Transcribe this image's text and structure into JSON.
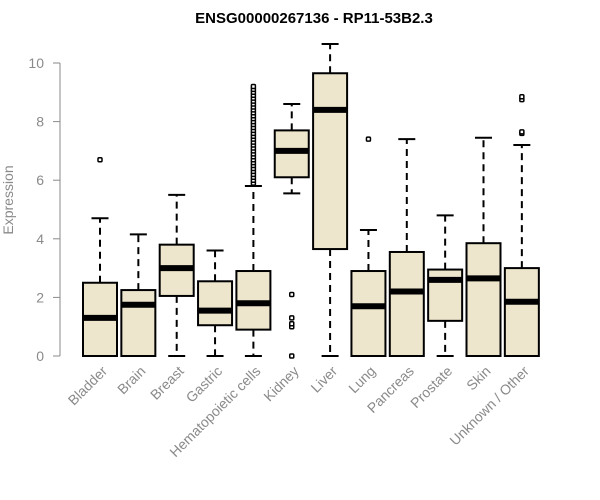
{
  "colors": {
    "box_fill": "#ede6cc",
    "stroke": "#000000",
    "axis_text": "#8a8a8a",
    "axis_line": "#8a8a8a"
  },
  "chart_data": {
    "type": "boxplot",
    "title": "ENSG00000267136 - RP11-53B2.3",
    "ylabel": "Expression",
    "xlabel": "",
    "ylim": [
      0,
      10
    ],
    "yticks": [
      0,
      2,
      4,
      6,
      8,
      10
    ],
    "categories": [
      "Bladder",
      "Brain",
      "Breast",
      "Gastric",
      "Hematopoietic cells",
      "Kidney",
      "Liver",
      "Lung",
      "Pancreas",
      "Prostate",
      "Skin",
      "Unknown / Other"
    ],
    "boxes": [
      {
        "category": "Bladder",
        "whisker_low": 0,
        "q1": 0,
        "median": 1.3,
        "q3": 2.5,
        "whisker_high": 4.7,
        "outliers": [
          6.7
        ]
      },
      {
        "category": "Brain",
        "whisker_low": 0,
        "q1": 0,
        "median": 1.75,
        "q3": 2.25,
        "whisker_high": 4.15,
        "outliers": []
      },
      {
        "category": "Breast",
        "whisker_low": 0,
        "q1": 2.05,
        "median": 3.0,
        "q3": 3.8,
        "whisker_high": 5.5,
        "outliers": []
      },
      {
        "category": "Gastric",
        "whisker_low": 0,
        "q1": 1.05,
        "median": 1.55,
        "q3": 2.55,
        "whisker_high": 3.6,
        "outliers": []
      },
      {
        "category": "Hematopoietic cells",
        "whisker_low": 0,
        "q1": 0.9,
        "median": 1.8,
        "q3": 2.9,
        "whisker_high": 5.8,
        "outliers": [
          5.9,
          6.0,
          6.1,
          6.2,
          6.3,
          6.4,
          6.5,
          6.6,
          6.7,
          6.8,
          6.9,
          7.0,
          7.1,
          7.2,
          7.3,
          7.4,
          7.5,
          7.6,
          7.7,
          7.8,
          7.9,
          8.0,
          8.1,
          8.2,
          8.3,
          8.4,
          8.5,
          8.6,
          8.7,
          8.8,
          8.9,
          9.0,
          9.1,
          9.2
        ]
      },
      {
        "category": "Kidney",
        "whisker_low": 5.55,
        "q1": 6.1,
        "median": 7.0,
        "q3": 7.7,
        "whisker_high": 8.6,
        "outliers": [
          0,
          1.0,
          1.1,
          1.3,
          2.1
        ]
      },
      {
        "category": "Liver",
        "whisker_low": 0,
        "q1": 3.65,
        "median": 8.4,
        "q3": 9.65,
        "whisker_high": 10.65,
        "outliers": []
      },
      {
        "category": "Lung",
        "whisker_low": 0,
        "q1": 0,
        "median": 1.7,
        "q3": 2.9,
        "whisker_high": 4.3,
        "outliers": [
          7.4
        ]
      },
      {
        "category": "Pancreas",
        "whisker_low": 0,
        "q1": 0,
        "median": 2.2,
        "q3": 3.55,
        "whisker_high": 7.4,
        "outliers": []
      },
      {
        "category": "Prostate",
        "whisker_low": 0,
        "q1": 1.2,
        "median": 2.6,
        "q3": 2.95,
        "whisker_high": 4.8,
        "outliers": []
      },
      {
        "category": "Skin",
        "whisker_low": 0,
        "q1": 0,
        "median": 2.65,
        "q3": 3.85,
        "whisker_high": 7.45,
        "outliers": []
      },
      {
        "category": "Unknown / Other",
        "whisker_low": 0,
        "q1": 0,
        "median": 1.85,
        "q3": 3.0,
        "whisker_high": 7.2,
        "outliers": [
          7.6,
          7.65,
          8.75,
          8.85
        ]
      }
    ]
  }
}
